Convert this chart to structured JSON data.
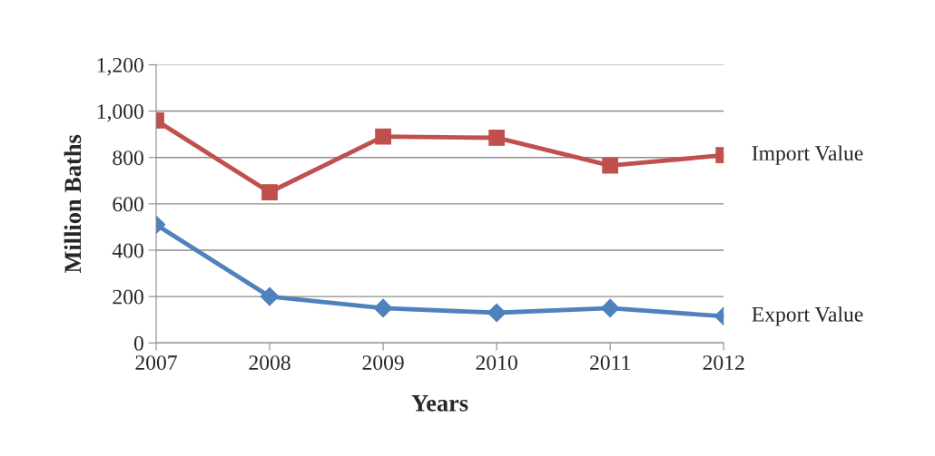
{
  "chart_data": {
    "type": "line",
    "xlabel": "Years",
    "ylabel": "Million Baths",
    "categories": [
      "2007",
      "2008",
      "2009",
      "2010",
      "2011",
      "2012"
    ],
    "series": [
      {
        "name": "Import Value",
        "color": "#c0504d",
        "marker": "square",
        "values": [
          960,
          650,
          890,
          885,
          765,
          810
        ]
      },
      {
        "name": "Export Value",
        "color": "#4f81bd",
        "marker": "diamond",
        "values": [
          510,
          200,
          150,
          130,
          150,
          115
        ]
      }
    ],
    "ylim": [
      0,
      1200
    ],
    "yticks": [
      {
        "value": 0,
        "label": "0"
      },
      {
        "value": 200,
        "label": "200"
      },
      {
        "value": 400,
        "label": "400"
      },
      {
        "value": 600,
        "label": "600"
      },
      {
        "value": 800,
        "label": "800"
      },
      {
        "value": 1000,
        "label": "1,000"
      },
      {
        "value": 1200,
        "label": "1,200"
      }
    ],
    "grid": "y",
    "legend": false,
    "line_style": "solid"
  }
}
